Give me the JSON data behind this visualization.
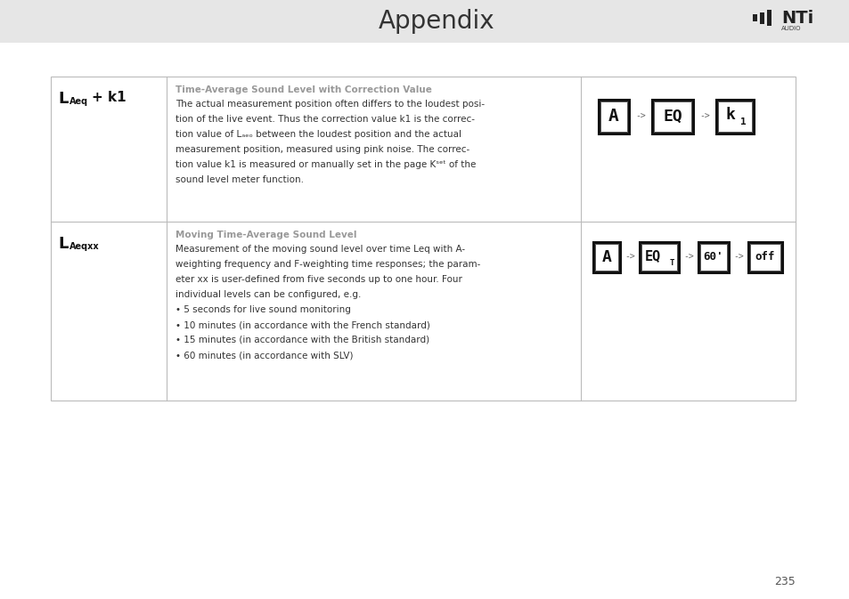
{
  "page_title": "Appendix",
  "page_number": "235",
  "header_bg": "#e6e6e6",
  "table_border": "#bbbbbb",
  "row1_title": "Time-Average Sound Level with Correction Value",
  "row1_body_lines": [
    "The actual measurement position often differs to the loudest posi-",
    "tion of the live event. Thus the correction value k1 is the correc-",
    "tion value of Lₐₑₒ between the loudest position and the actual",
    "measurement position, measured using pink noise. The correc-",
    "tion value k1 is measured or manually set in the page Kˢᵉᵗ of the",
    "sound level meter function."
  ],
  "row2_title": "Moving Time-Average Sound Level",
  "row2_body_lines": [
    "Measurement of the moving sound level over time Leq with A-",
    "weighting frequency and F-weighting time responses; the param-",
    "eter xx is user-defined from five seconds up to one hour. Four",
    "individual levels can be configured, e.g.",
    "• 5 seconds for live sound monitoring",
    "• 10 minutes (in accordance with the French standard)",
    "• 15 minutes (in accordance with the British standard)",
    "• 60 minutes (in accordance with SLV)"
  ],
  "title_color": "#999999",
  "body_color": "#333333",
  "label_color": "#111111",
  "icon_color": "#111111",
  "arrow_color": "#777777"
}
